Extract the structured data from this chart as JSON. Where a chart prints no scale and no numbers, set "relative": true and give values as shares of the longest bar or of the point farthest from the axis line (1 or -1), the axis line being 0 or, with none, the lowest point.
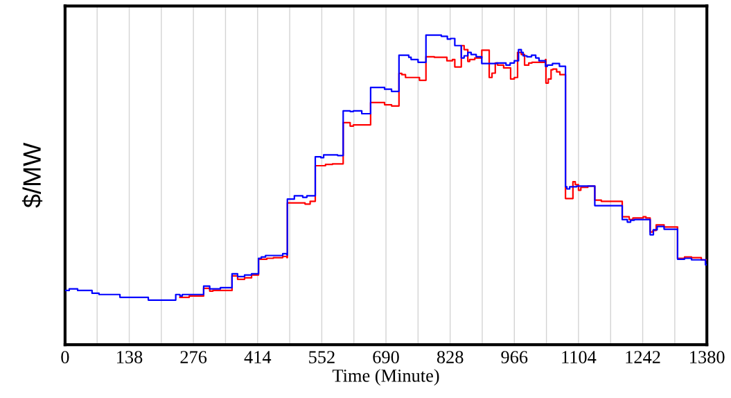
{
  "chart_data": {
    "type": "step",
    "relative": true,
    "xlabel": "Time (Minute)",
    "ylabel": "$/MW",
    "xlim": [
      0,
      1380
    ],
    "xticks": [
      0,
      {
        "value": 69,
        "label": null
      },
      138,
      {
        "value": 207,
        "label": null
      },
      276,
      {
        "value": 345,
        "label": null
      },
      414,
      {
        "value": 483,
        "label": null
      },
      552,
      {
        "value": 621,
        "label": null
      },
      690,
      {
        "value": 759,
        "label": null
      },
      828,
      {
        "value": 897,
        "label": null
      },
      966,
      {
        "value": 1035,
        "label": null
      },
      1104,
      {
        "value": 1173,
        "label": null
      },
      1242,
      {
        "value": 1311,
        "label": null
      },
      1380
    ],
    "grid": "x",
    "line_style": "solid",
    "marker": "none",
    "series": [
      {
        "color": "#ff0000",
        "x": [
          247,
          267,
          298,
          311,
          318,
          359,
          371,
          386,
          401,
          416,
          434,
          448,
          468,
          477,
          478,
          516,
          527,
          538,
          560,
          575,
          598,
          613,
          620,
          657,
          687,
          702,
          718,
          724,
          732,
          762,
          776,
          794,
          821,
          833,
          838,
          852,
          858,
          866,
          870,
          881,
          896,
          912,
          918,
          925,
          930,
          943,
          958,
          966,
          973,
          981,
          988,
          997,
          1004,
          1033,
          1034,
          1039,
          1045,
          1049,
          1057,
          1064,
          1076,
          1092,
          1097,
          1104,
          1109,
          1124,
          1139,
          1153,
          1198,
          1213,
          1221,
          1243,
          1249,
          1258,
          1264,
          1271,
          1288,
          1317,
          1332,
          1347,
          1368,
          1380
        ],
        "values": [
          0.153,
          0.157,
          0.182,
          0.173,
          0.175,
          0.222,
          0.211,
          0.216,
          0.225,
          0.276,
          0.279,
          0.281,
          0.285,
          0.281,
          0.458,
          0.454,
          0.463,
          0.578,
          0.582,
          0.584,
          0.717,
          0.706,
          0.71,
          0.782,
          0.775,
          0.771,
          0.876,
          0.872,
          0.863,
          0.854,
          0.93,
          0.928,
          0.917,
          0.921,
          0.897,
          0.966,
          0.953,
          0.915,
          0.921,
          0.926,
          0.951,
          0.863,
          0.877,
          0.91,
          0.903,
          0.894,
          0.858,
          0.863,
          0.944,
          0.937,
          0.903,
          0.91,
          0.912,
          0.921,
          0.845,
          0.858,
          0.888,
          0.89,
          0.881,
          0.872,
          0.472,
          0.526,
          0.517,
          0.499,
          0.508,
          0.512,
          0.467,
          0.463,
          0.413,
          0.404,
          0.409,
          0.413,
          0.409,
          0.364,
          0.369,
          0.387,
          0.38,
          0.279,
          0.283,
          0.281,
          0.274,
          0.274
        ]
      },
      {
        "color": "#0000ff",
        "x": [
          0,
          9,
          27,
          58,
          73,
          118,
          179,
          238,
          247,
          252,
          298,
          311,
          334,
          359,
          371,
          386,
          401,
          416,
          422,
          431,
          468,
          477,
          478,
          493,
          511,
          520,
          538,
          550,
          556,
          586,
          598,
          613,
          620,
          638,
          657,
          687,
          702,
          718,
          739,
          744,
          759,
          763,
          776,
          809,
          822,
          829,
          838,
          852,
          858,
          866,
          873,
          884,
          896,
          928,
          948,
          957,
          966,
          975,
          981,
          985,
          993,
          1003,
          1012,
          1019,
          1033,
          1037,
          1048,
          1063,
          1076,
          1079,
          1085,
          1100,
          1139,
          1198,
          1209,
          1216,
          1224,
          1258,
          1265,
          1273,
          1288,
          1317,
          1332,
          1347,
          1377,
          1380
        ],
        "values": [
          0.175,
          0.18,
          0.175,
          0.166,
          0.162,
          0.153,
          0.144,
          0.162,
          0.157,
          0.162,
          0.189,
          0.18,
          0.184,
          0.229,
          0.22,
          0.225,
          0.229,
          0.279,
          0.283,
          0.288,
          0.294,
          0.29,
          0.47,
          0.481,
          0.476,
          0.481,
          0.607,
          0.604,
          0.613,
          0.611,
          0.755,
          0.753,
          0.755,
          0.746,
          0.831,
          0.825,
          0.818,
          0.935,
          0.928,
          0.921,
          0.912,
          0.912,
          1.0,
          0.996,
          0.987,
          0.989,
          0.966,
          0.926,
          0.933,
          0.944,
          0.937,
          0.93,
          0.908,
          0.91,
          0.903,
          0.91,
          0.917,
          0.953,
          0.944,
          0.933,
          0.93,
          0.935,
          0.926,
          0.917,
          0.899,
          0.903,
          0.908,
          0.899,
          0.51,
          0.503,
          0.51,
          0.512,
          0.449,
          0.404,
          0.396,
          0.402,
          0.404,
          0.355,
          0.371,
          0.382,
          0.373,
          0.276,
          0.279,
          0.274,
          0.258,
          0.258
        ]
      }
    ]
  }
}
